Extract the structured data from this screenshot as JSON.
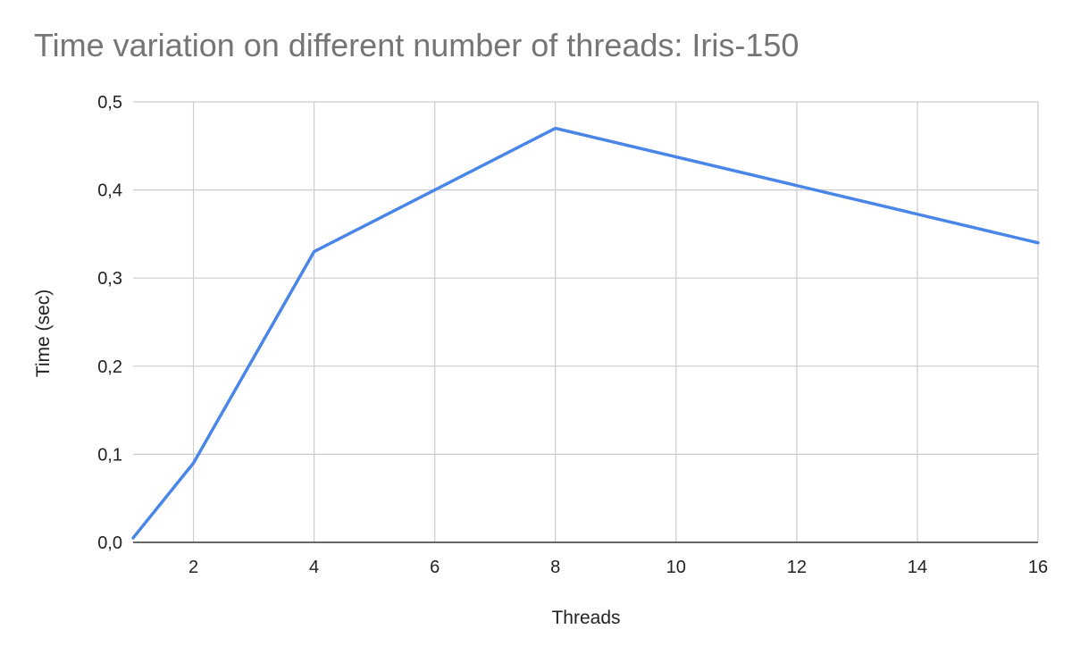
{
  "chart_data": {
    "type": "line",
    "title": "Time variation on different number of threads: Iris-150",
    "xlabel": "Threads",
    "ylabel": "Time (sec)",
    "xlim": [
      1,
      16
    ],
    "ylim": [
      0,
      0.5
    ],
    "x_ticks": [
      2,
      4,
      6,
      8,
      10,
      12,
      14,
      16
    ],
    "x_tick_labels": [
      "2",
      "4",
      "6",
      "8",
      "10",
      "12",
      "14",
      "16"
    ],
    "y_ticks": [
      0,
      0.1,
      0.2,
      0.3,
      0.4,
      0.5
    ],
    "y_tick_labels": [
      "0,0",
      "0,1",
      "0,2",
      "0,3",
      "0,4",
      "0,5"
    ],
    "grid": true,
    "legend": "none",
    "series": [
      {
        "color": "#4a86e8",
        "x": [
          1,
          2,
          4,
          8,
          16
        ],
        "y": [
          0.005,
          0.09,
          0.33,
          0.47,
          0.34
        ]
      }
    ]
  }
}
